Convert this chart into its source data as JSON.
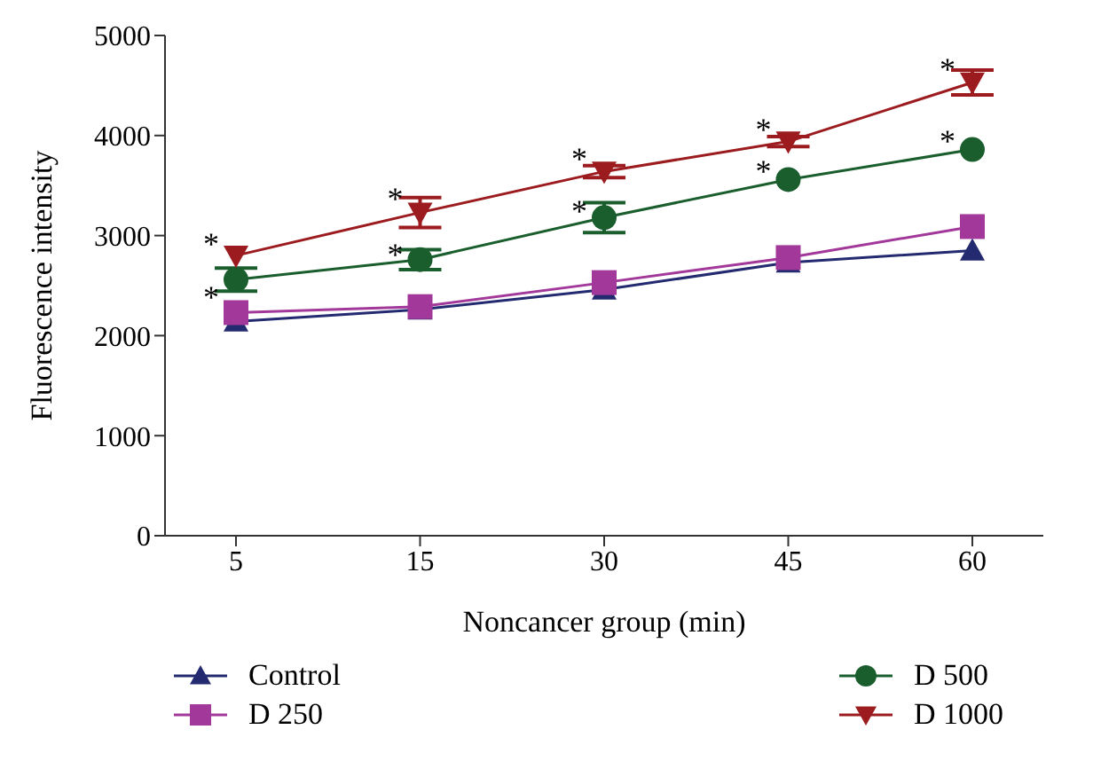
{
  "chart_data": {
    "type": "line",
    "xlabel": "Noncancer group (min)",
    "ylabel": "Fluorescence intensity",
    "categories": [
      "5",
      "15",
      "30",
      "45",
      "60"
    ],
    "ylim": [
      0,
      5000
    ],
    "yticks": [
      0,
      1000,
      2000,
      3000,
      4000,
      5000
    ],
    "grid": false,
    "legend": "bottom",
    "series": [
      {
        "name": "Control",
        "color": "#232a70",
        "marker": "triangle",
        "values": [
          2140,
          2260,
          2460,
          2730,
          2850
        ]
      },
      {
        "name": "D 250",
        "color": "#a2399a",
        "marker": "square",
        "values": [
          2230,
          2290,
          2530,
          2780,
          3090
        ]
      },
      {
        "name": "D 500",
        "color": "#1a5e2e",
        "marker": "circle",
        "values": [
          2560,
          2760,
          3180,
          3560,
          3860
        ],
        "errors": [
          115,
          100,
          150,
          null,
          null
        ]
      },
      {
        "name": "D 1000",
        "color": "#9c1b1f",
        "marker": "triangle-down",
        "values": [
          2800,
          3230,
          3640,
          3940,
          4530
        ],
        "errors": [
          null,
          150,
          60,
          50,
          125
        ]
      }
    ],
    "annotations": [
      {
        "text": "*",
        "x": "5",
        "y": 2950
      },
      {
        "text": "*",
        "x": "15",
        "y": 3400
      },
      {
        "text": "*",
        "x": "30",
        "y": 3800
      },
      {
        "text": "*",
        "x": "45",
        "y": 4100
      },
      {
        "text": "*",
        "x": "60",
        "y": 4700
      },
      {
        "text": "*",
        "x": "5",
        "y": 2420
      },
      {
        "text": "*",
        "x": "15",
        "y": 2850
      },
      {
        "text": "*",
        "x": "30",
        "y": 3280
      },
      {
        "text": "*",
        "x": "45",
        "y": 3680
      },
      {
        "text": "*",
        "x": "60",
        "y": 3980
      }
    ]
  }
}
